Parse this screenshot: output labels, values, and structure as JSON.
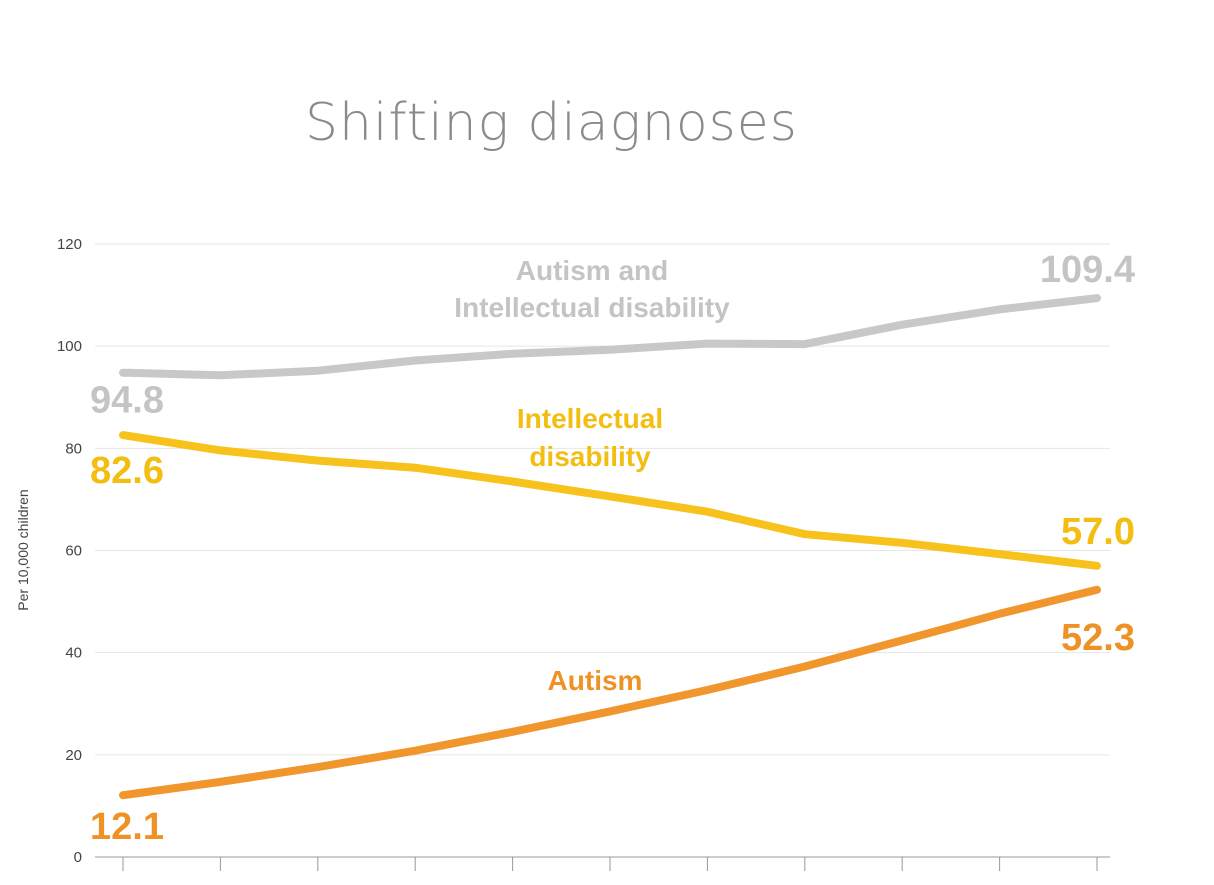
{
  "chart_data": {
    "type": "line",
    "title": "Shifting diagnoses",
    "ylabel": "Per 10,000 children",
    "xlabel": "",
    "ylim": [
      0,
      120
    ],
    "yticks": [
      0,
      20,
      40,
      60,
      80,
      100,
      120
    ],
    "x": [
      1,
      2,
      3,
      4,
      5,
      6,
      7,
      8,
      9,
      10,
      11
    ],
    "grid": true,
    "legend": "inline labels",
    "series": [
      {
        "name": "Autism and Intellectual disability",
        "label_lines": [
          "Autism and",
          "Intellectual disability"
        ],
        "color": "#c8c8c8",
        "values": [
          94.8,
          94.3,
          95.2,
          97.2,
          98.5,
          99.3,
          100.5,
          100.4,
          104.2,
          107.2,
          109.4
        ],
        "start_label": "94.8",
        "end_label": "109.4"
      },
      {
        "name": "Intellectual disability",
        "label_lines": [
          "Intellectual",
          "disability"
        ],
        "color": "#f6c21b",
        "values": [
          82.6,
          79.6,
          77.6,
          76.2,
          73.5,
          70.6,
          67.6,
          63.2,
          61.5,
          59.3,
          57.0
        ],
        "start_label": "82.6",
        "end_label": "57.0"
      },
      {
        "name": "Autism",
        "label_lines": [
          "Autism"
        ],
        "color": "#f0962d",
        "values": [
          12.1,
          14.7,
          17.6,
          20.8,
          24.5,
          28.5,
          32.7,
          37.3,
          42.4,
          47.6,
          52.3
        ],
        "start_label": "12.1",
        "end_label": "52.3"
      }
    ]
  }
}
